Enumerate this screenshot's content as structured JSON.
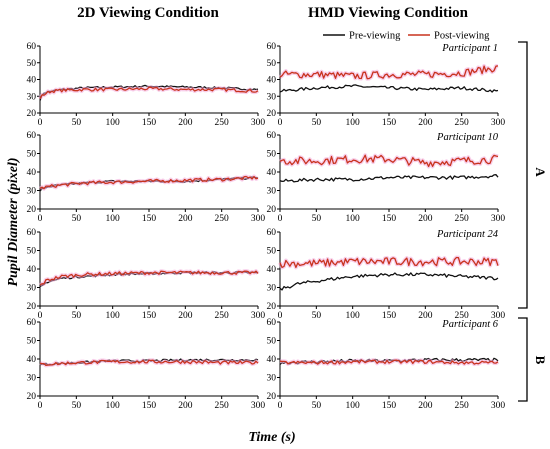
{
  "figure": {
    "col_titles": [
      "2D Viewing Condition",
      "HMD Viewing Condition"
    ],
    "ylabel": "Pupil Diameter (pixel)",
    "xlabel": "Time (s)",
    "legend": [
      {
        "label": "Pre-viewing",
        "color": "#111111"
      },
      {
        "label": "Post-viewing",
        "color": "#c8331e"
      }
    ],
    "groups": [
      {
        "label": "A"
      },
      {
        "label": "B"
      }
    ],
    "halo_color": "#f2a6d9"
  },
  "chart_data": {
    "type": "line",
    "x_ticks": [
      0,
      50,
      100,
      150,
      200,
      250,
      300
    ],
    "y_ticks": [
      20,
      30,
      40,
      50,
      60
    ],
    "xlim": [
      0,
      300
    ],
    "ylim": [
      20,
      60
    ],
    "grid": false,
    "legend_position": "top-right",
    "panels": [
      {
        "participant": "Participant 1",
        "group": "A",
        "condition": "2D",
        "series": [
          {
            "name": "Pre-viewing",
            "x": [
              0,
              5,
              15,
              30,
              60,
              100,
              150,
              200,
              250,
              300
            ],
            "y": [
              28,
              32,
              33,
              34,
              35,
              35.5,
              36,
              35.5,
              35,
              34
            ]
          },
          {
            "name": "Post-viewing",
            "x": [
              0,
              5,
              15,
              30,
              60,
              100,
              150,
              200,
              250,
              300
            ],
            "y": [
              29,
              31,
              33,
              33.5,
              34,
              34,
              34.5,
              34,
              34,
              33
            ]
          }
        ]
      },
      {
        "participant": "Participant 1",
        "group": "A",
        "condition": "HMD",
        "series": [
          {
            "name": "Pre-viewing",
            "x": [
              0,
              50,
              100,
              150,
              200,
              250,
              300
            ],
            "y": [
              33,
              35,
              36,
              35,
              34,
              35,
              33
            ]
          },
          {
            "name": "Post-viewing",
            "x": [
              0,
              50,
              100,
              150,
              200,
              250,
              300
            ],
            "y": [
              43,
              43,
              42,
              43,
              43,
              44,
              47
            ]
          }
        ]
      },
      {
        "participant": "Participant 10",
        "group": "A",
        "condition": "2D",
        "series": [
          {
            "name": "Pre-viewing",
            "x": [
              0,
              10,
              30,
              60,
              100,
              150,
              200,
              250,
              300
            ],
            "y": [
              30,
              32,
              33,
              34,
              35,
              35,
              35,
              36,
              37
            ]
          },
          {
            "name": "Post-viewing",
            "x": [
              0,
              10,
              30,
              60,
              100,
              150,
              200,
              250,
              300
            ],
            "y": [
              31,
              32,
              33,
              34,
              34.5,
              35,
              35.5,
              36,
              37
            ]
          }
        ]
      },
      {
        "participant": "Participant 10",
        "group": "A",
        "condition": "HMD",
        "series": [
          {
            "name": "Pre-viewing",
            "x": [
              0,
              50,
              100,
              150,
              200,
              250,
              300
            ],
            "y": [
              35,
              36,
              36,
              37,
              37,
              37,
              38
            ]
          },
          {
            "name": "Post-viewing",
            "x": [
              0,
              50,
              100,
              150,
              200,
              250,
              300
            ],
            "y": [
              46,
              46,
              47,
              47,
              45,
              46,
              47
            ]
          }
        ]
      },
      {
        "participant": "Participant 24",
        "group": "A",
        "condition": "2D",
        "series": [
          {
            "name": "Pre-viewing",
            "x": [
              0,
              10,
              30,
              60,
              100,
              150,
              200,
              250,
              300
            ],
            "y": [
              30,
              33,
              35,
              36,
              37,
              37.5,
              38,
              38,
              38
            ]
          },
          {
            "name": "Post-viewing",
            "x": [
              0,
              10,
              30,
              60,
              100,
              150,
              200,
              250,
              300
            ],
            "y": [
              31,
              34,
              36,
              37,
              37.5,
              38,
              38,
              38,
              38
            ]
          }
        ]
      },
      {
        "participant": "Participant 24",
        "group": "A",
        "condition": "HMD",
        "series": [
          {
            "name": "Pre-viewing",
            "x": [
              0,
              25,
              60,
              100,
              150,
              200,
              250,
              300
            ],
            "y": [
              29,
              32,
              34,
              36,
              37,
              37,
              36,
              35
            ]
          },
          {
            "name": "Post-viewing",
            "x": [
              0,
              50,
              100,
              150,
              200,
              250,
              300
            ],
            "y": [
              43,
              43,
              44,
              44,
              44,
              44,
              44
            ]
          }
        ]
      },
      {
        "participant": "Participant 6",
        "group": "B",
        "condition": "2D",
        "series": [
          {
            "name": "Pre-viewing",
            "x": [
              0,
              50,
              100,
              150,
              200,
              250,
              300
            ],
            "y": [
              37,
              38,
              39,
              39,
              39.5,
              39.5,
              39.5
            ]
          },
          {
            "name": "Post-viewing",
            "x": [
              0,
              50,
              100,
              150,
              200,
              250,
              300
            ],
            "y": [
              37,
              38,
              38.5,
              38.5,
              38.5,
              38,
              38
            ]
          }
        ]
      },
      {
        "participant": "Participant 6",
        "group": "B",
        "condition": "HMD",
        "series": [
          {
            "name": "Pre-viewing",
            "x": [
              0,
              50,
              100,
              150,
              200,
              250,
              300
            ],
            "y": [
              38,
              38.5,
              39,
              39,
              39.5,
              39.5,
              39.5
            ]
          },
          {
            "name": "Post-viewing",
            "x": [
              0,
              50,
              100,
              150,
              200,
              250,
              300
            ],
            "y": [
              38,
              38,
              38.5,
              38.5,
              38.5,
              38,
              38
            ]
          }
        ]
      }
    ]
  }
}
